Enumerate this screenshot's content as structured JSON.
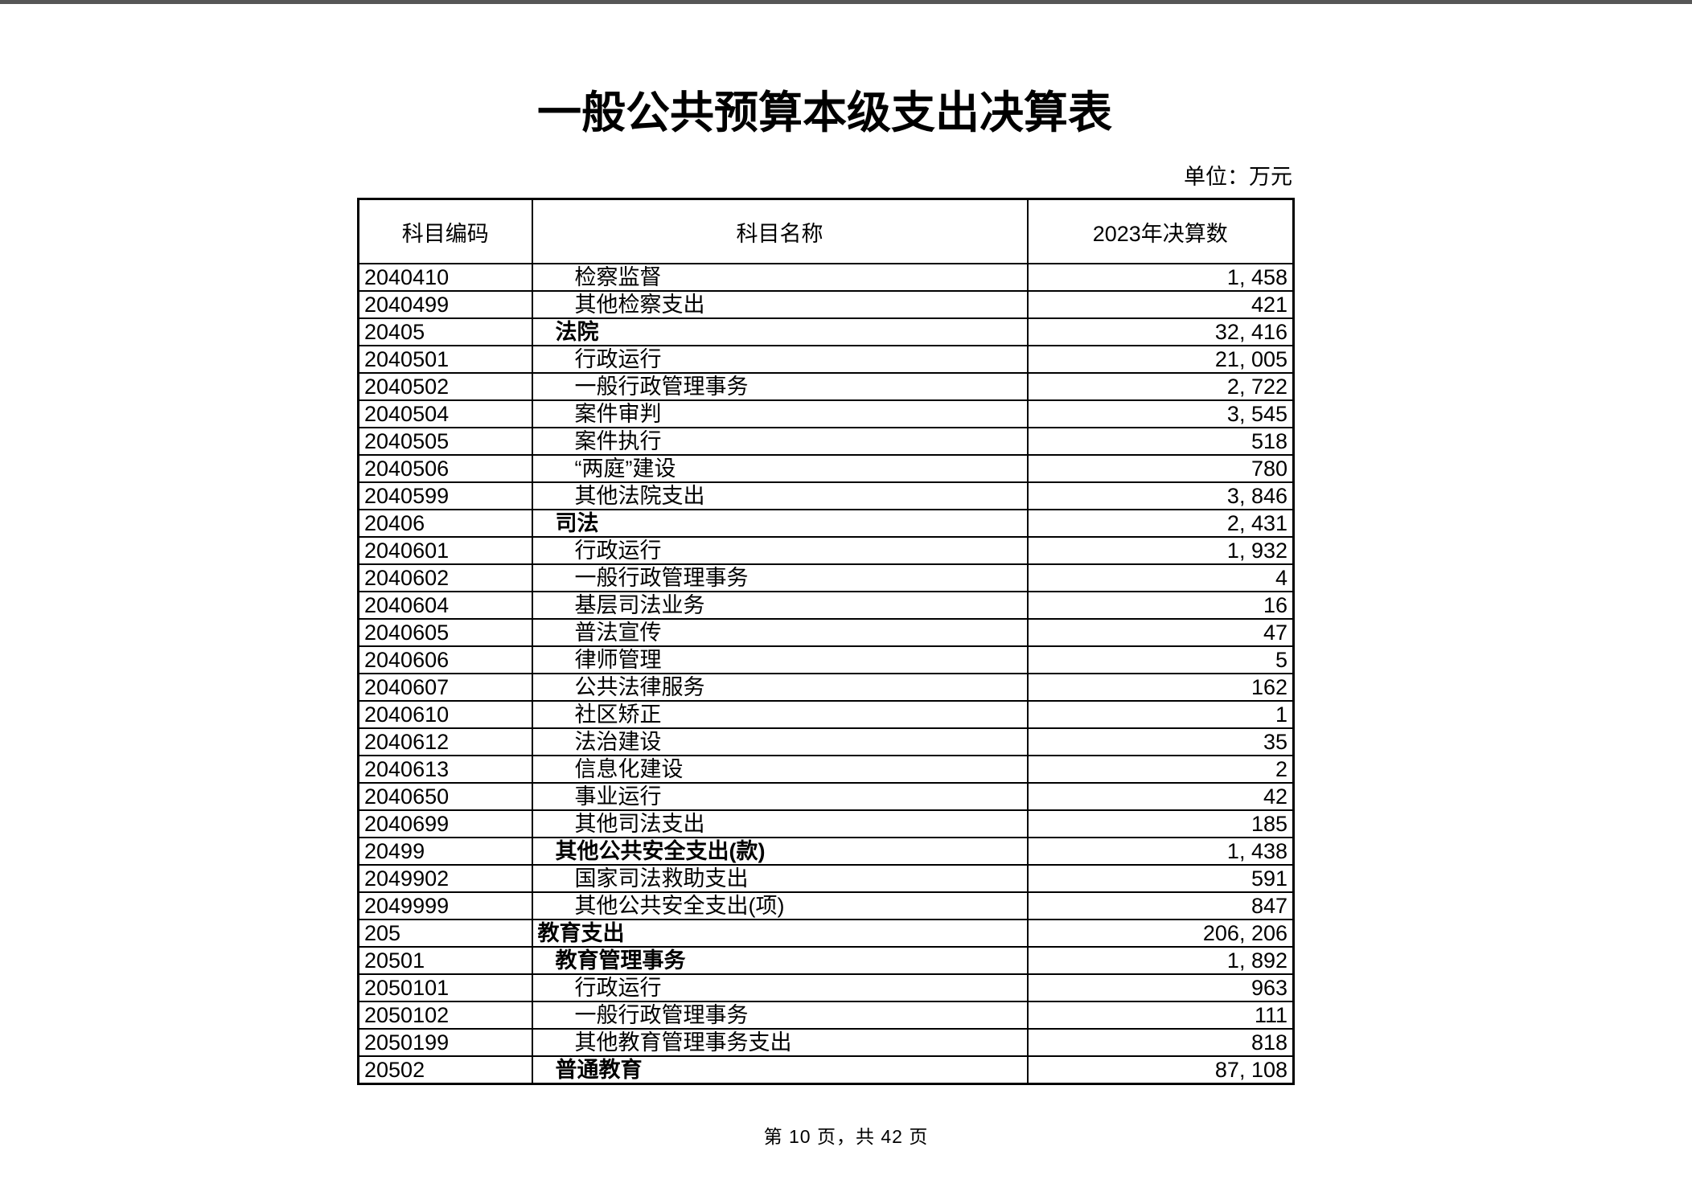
{
  "page": {
    "title": "一般公共预算本级支出决算表",
    "unit_label": "单位：万元",
    "footer": "第 10 页，共 42 页"
  },
  "colors": {
    "text": "#000000",
    "table_border": "#000000",
    "top_edge_bar": "#565656",
    "background": "#ffffff"
  },
  "table": {
    "columns": [
      "科目编码",
      "科目名称",
      "2023年决算数"
    ],
    "rows": [
      {
        "code": "2040410",
        "name": "检察监督",
        "value": "1, 458",
        "level": 2
      },
      {
        "code": "2040499",
        "name": "其他检察支出",
        "value": "421",
        "level": 2
      },
      {
        "code": "20405",
        "name": "法院",
        "value": "32, 416",
        "level": 1
      },
      {
        "code": "2040501",
        "name": "行政运行",
        "value": "21, 005",
        "level": 2
      },
      {
        "code": "2040502",
        "name": "一般行政管理事务",
        "value": "2, 722",
        "level": 2
      },
      {
        "code": "2040504",
        "name": "案件审判",
        "value": "3, 545",
        "level": 2
      },
      {
        "code": "2040505",
        "name": "案件执行",
        "value": "518",
        "level": 2
      },
      {
        "code": "2040506",
        "name": "“两庭”建设",
        "value": "780",
        "level": 2
      },
      {
        "code": "2040599",
        "name": "其他法院支出",
        "value": "3, 846",
        "level": 2
      },
      {
        "code": "20406",
        "name": "司法",
        "value": "2, 431",
        "level": 1
      },
      {
        "code": "2040601",
        "name": "行政运行",
        "value": "1, 932",
        "level": 2
      },
      {
        "code": "2040602",
        "name": "一般行政管理事务",
        "value": "4",
        "level": 2
      },
      {
        "code": "2040604",
        "name": "基层司法业务",
        "value": "16",
        "level": 2
      },
      {
        "code": "2040605",
        "name": "普法宣传",
        "value": "47",
        "level": 2
      },
      {
        "code": "2040606",
        "name": "律师管理",
        "value": "5",
        "level": 2
      },
      {
        "code": "2040607",
        "name": "公共法律服务",
        "value": "162",
        "level": 2
      },
      {
        "code": "2040610",
        "name": "社区矫正",
        "value": "1",
        "level": 2
      },
      {
        "code": "2040612",
        "name": "法治建设",
        "value": "35",
        "level": 2
      },
      {
        "code": "2040613",
        "name": "信息化建设",
        "value": "2",
        "level": 2
      },
      {
        "code": "2040650",
        "name": "事业运行",
        "value": "42",
        "level": 2
      },
      {
        "code": "2040699",
        "name": "其他司法支出",
        "value": "185",
        "level": 2
      },
      {
        "code": "20499",
        "name": "其他公共安全支出(款)",
        "value": "1, 438",
        "level": 1
      },
      {
        "code": "2049902",
        "name": "国家司法救助支出",
        "value": "591",
        "level": 2
      },
      {
        "code": "2049999",
        "name": "其他公共安全支出(项)",
        "value": "847",
        "level": 2
      },
      {
        "code": "205",
        "name": "教育支出",
        "value": "206, 206",
        "level": 0
      },
      {
        "code": "20501",
        "name": "教育管理事务",
        "value": "1, 892",
        "level": 1
      },
      {
        "code": "2050101",
        "name": "行政运行",
        "value": "963",
        "level": 2
      },
      {
        "code": "2050102",
        "name": "一般行政管理事务",
        "value": "111",
        "level": 2
      },
      {
        "code": "2050199",
        "name": "其他教育管理事务支出",
        "value": "818",
        "level": 2
      },
      {
        "code": "20502",
        "name": "普通教育",
        "value": "87, 108",
        "level": 1
      }
    ]
  }
}
